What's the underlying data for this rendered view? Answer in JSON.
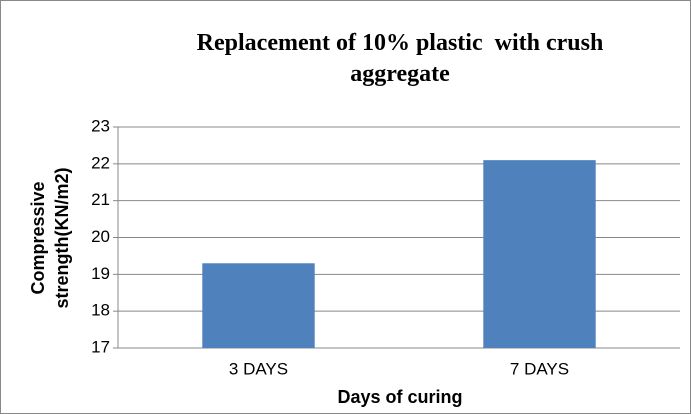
{
  "chart_data": {
    "type": "bar",
    "title": "Replacement of 10% plastic  with crush aggregate",
    "categories": [
      "3 DAYS",
      "7 DAYS"
    ],
    "values": [
      19.3,
      22.1
    ],
    "color": "#4f81bd",
    "xlabel": "Days of curing",
    "ylabel": "Compressive strength(KN/m2)",
    "ylim": [
      17,
      23
    ],
    "yticks": [
      17,
      18,
      19,
      20,
      21,
      22,
      23
    ],
    "grid": true
  }
}
